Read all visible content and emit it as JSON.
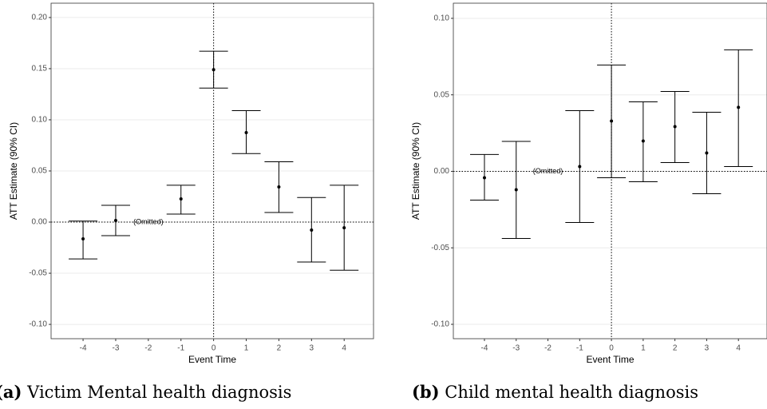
{
  "chart_data": [
    {
      "type": "errorbar",
      "y_label": "ATT Estimate (90% CI)",
      "x_label": "Event Time",
      "caption_label": "(a)",
      "caption": "Victim Mental health diagnosis",
      "x": [
        -4,
        -3,
        -1,
        0,
        1,
        2,
        3,
        4
      ],
      "values": [
        -0.0164,
        0.0016,
        0.0227,
        0.149,
        0.0875,
        0.0344,
        -0.0078,
        -0.0055
      ],
      "lower": [
        -0.036,
        -0.0133,
        0.0078,
        0.131,
        0.067,
        0.0094,
        -0.039,
        -0.047
      ],
      "upper": [
        0.001,
        0.0164,
        0.036,
        0.167,
        0.109,
        0.059,
        0.024,
        0.036
      ],
      "color": "#000000",
      "annotation": {
        "text": "(Omitted)",
        "x": -2,
        "y": 0
      },
      "xlim": [
        -4.98,
        4.9
      ],
      "xticks": [
        -4,
        -3,
        -2,
        -1,
        0,
        1,
        2,
        3,
        4
      ],
      "ylim": [
        -0.114,
        0.214
      ],
      "yticks": [
        {
          "value": -0.1,
          "label": "-0.10"
        },
        -0.05,
        {
          "value": 0,
          "label": "0.00"
        },
        0.05,
        {
          "value": 0.1,
          "label": "0.10"
        },
        0.15,
        {
          "value": 0.2,
          "label": "0.20"
        }
      ],
      "grid": true
    },
    {
      "type": "errorbar",
      "y_label": "ATT Estimate (90% CI)",
      "x_label": "Event Time",
      "caption_label": "(b)",
      "caption": "Child mental health diagnosis",
      "x": [
        -4,
        -3,
        -1,
        0,
        1,
        2,
        3,
        4
      ],
      "values": [
        -0.0042,
        -0.012,
        0.0031,
        0.0329,
        0.0198,
        0.0292,
        0.012,
        0.0418
      ],
      "lower": [
        -0.0188,
        -0.0439,
        -0.0334,
        -0.0042,
        -0.0068,
        0.0057,
        -0.0146,
        0.0031
      ],
      "upper": [
        0.011,
        0.0196,
        0.0397,
        0.0695,
        0.0454,
        0.0522,
        0.0386,
        0.0794
      ],
      "color": "#000000",
      "annotation": {
        "text": "(Omitted)",
        "x": -2,
        "y": 0
      },
      "xlim": [
        -4.98,
        4.9
      ],
      "xticks": [
        -4,
        -3,
        -2,
        -1,
        0,
        1,
        2,
        3,
        4
      ],
      "ylim": [
        -0.1094,
        0.1099
      ],
      "yticks": [
        {
          "value": -0.1,
          "label": "-0.10"
        },
        -0.05,
        {
          "value": 0,
          "label": "0.00"
        },
        0.05,
        {
          "value": 0.1,
          "label": "0.10"
        }
      ],
      "grid": true
    }
  ]
}
